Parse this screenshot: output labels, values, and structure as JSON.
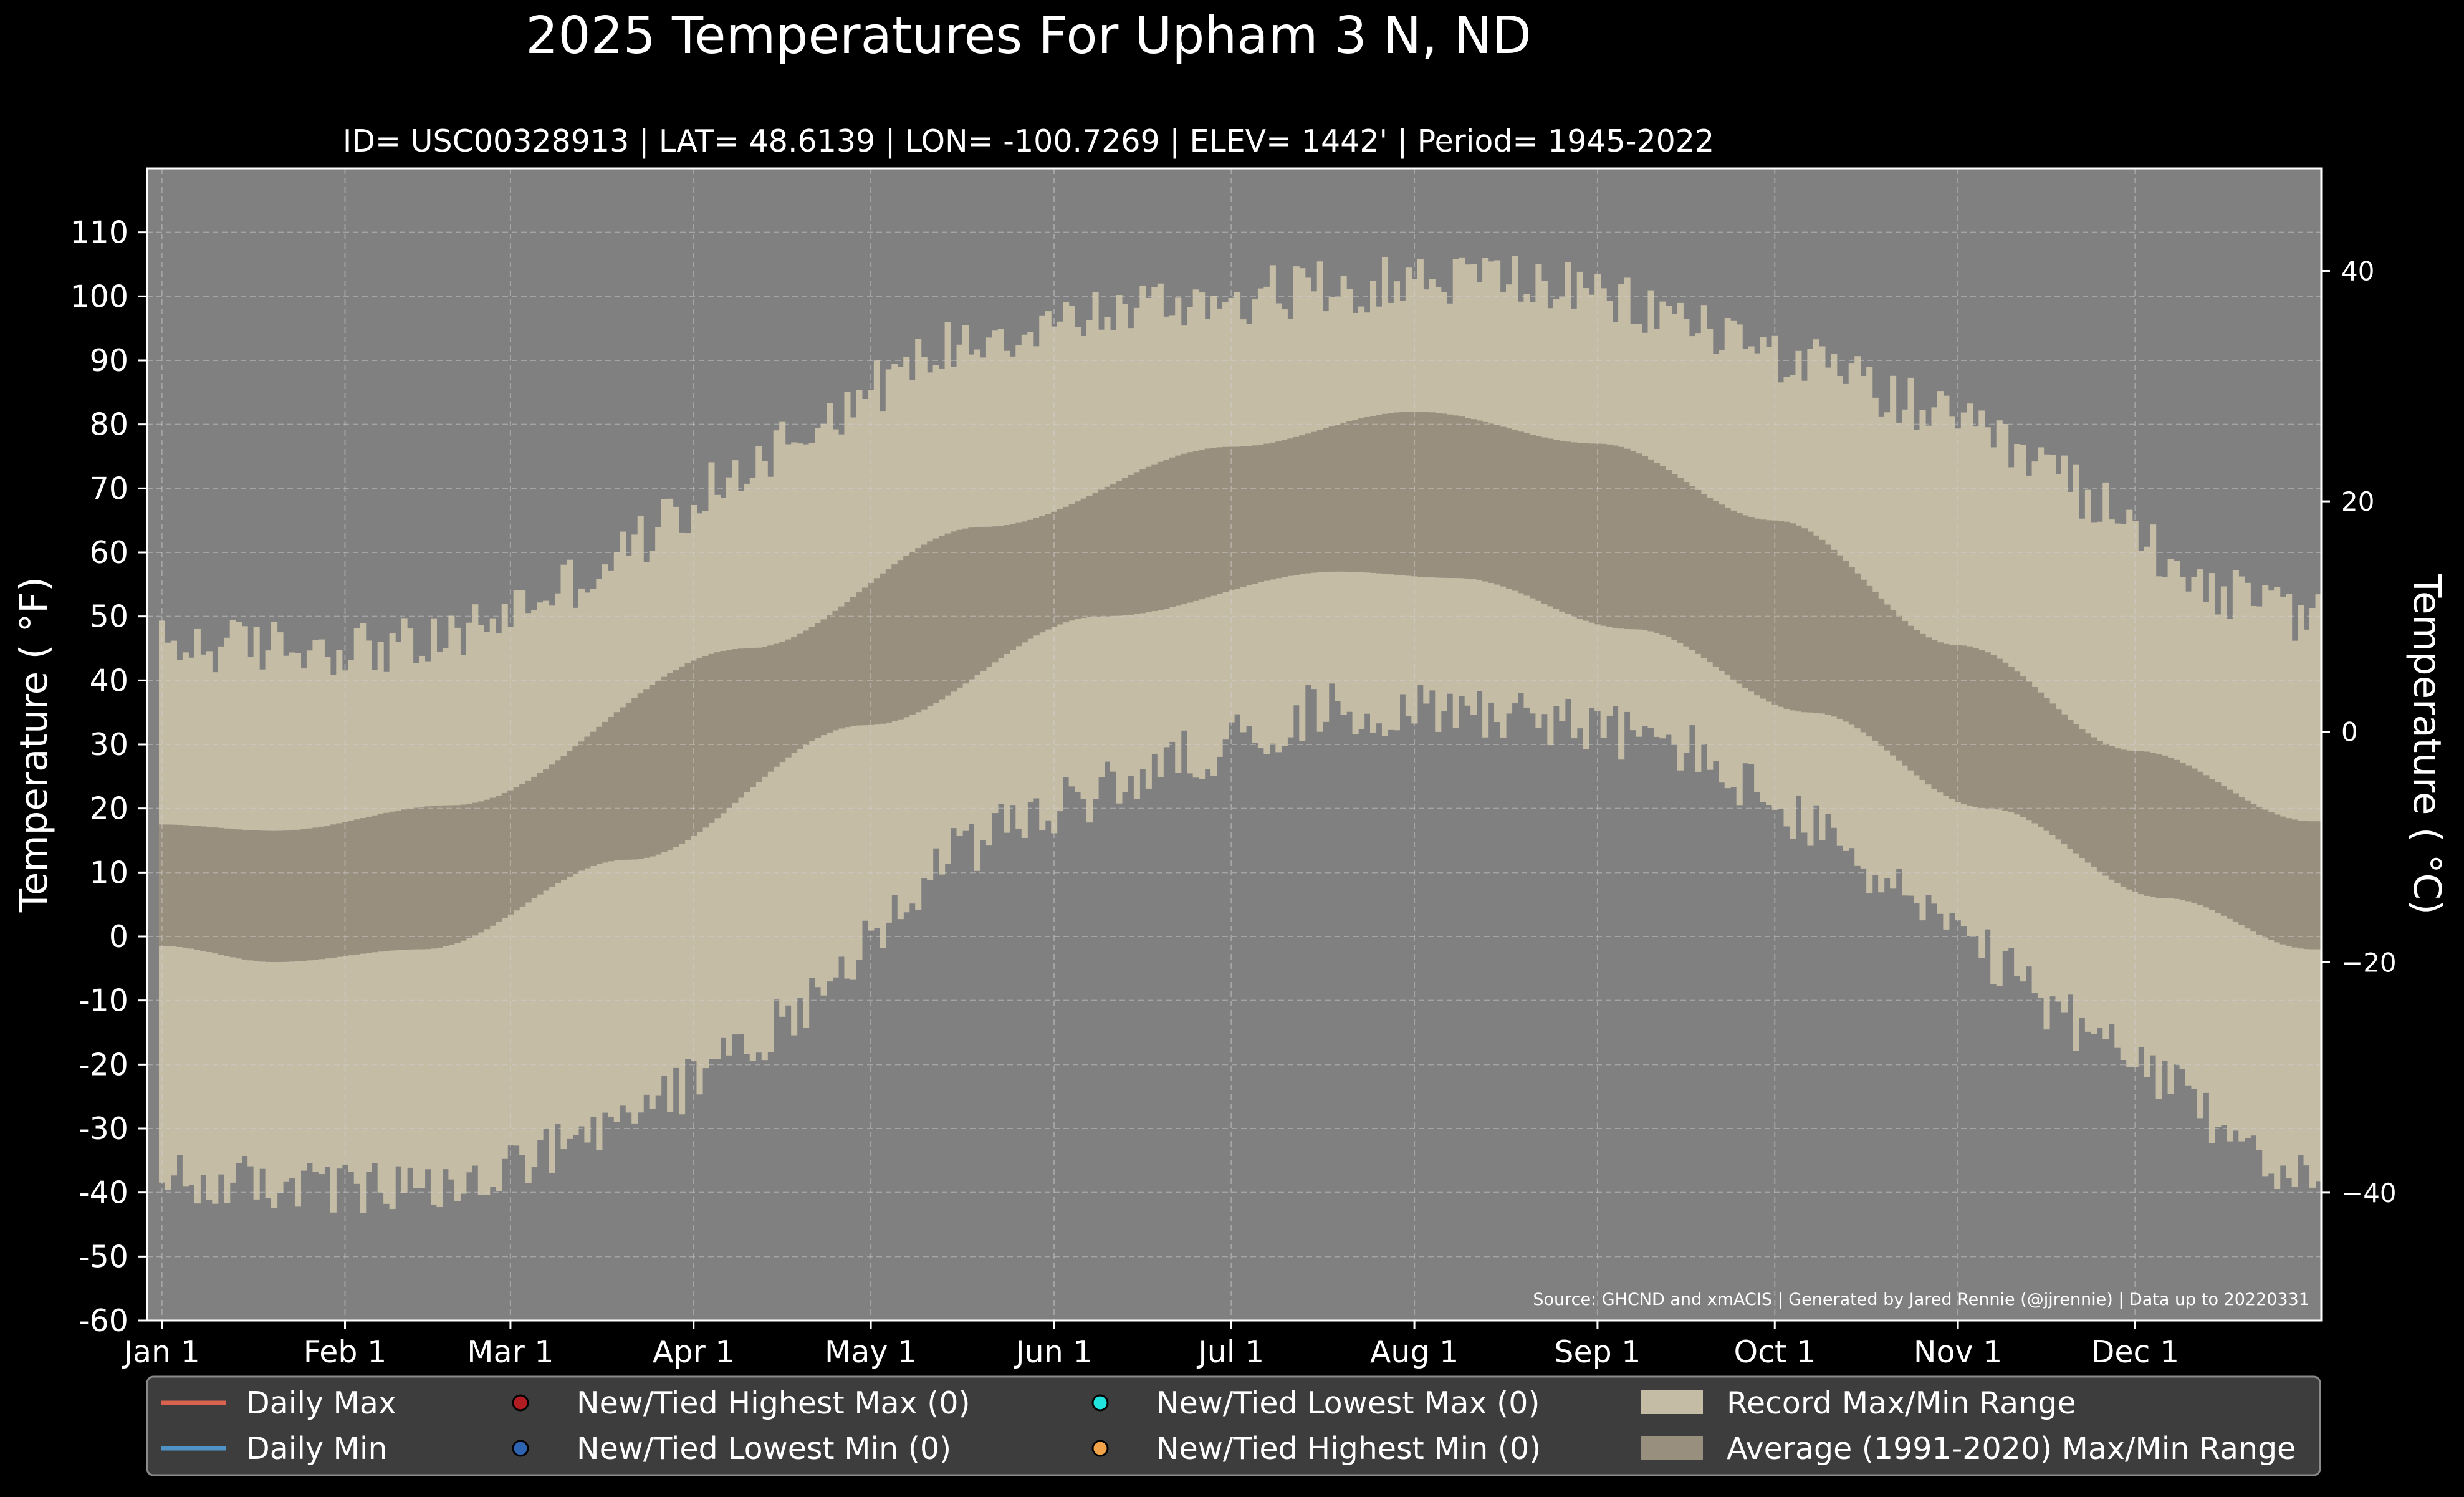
{
  "chart_data": {
    "type": "area",
    "title": "2025 Temperatures For Upham 3 N, ND",
    "subtitle": "ID= USC00328913 | LAT= 48.6139 | LON= -100.7269 | ELEV= 1442' | Period= 1945-2022",
    "ylabel_left": "Temperature ( °F)",
    "ylabel_right": "Temperature ( °C)",
    "source_note": "Source: GHCND and xmACIS | Generated by Jared Rennie (@jjrennie) | Data up to 20220331",
    "ylim_f": [
      -60,
      120
    ],
    "ylim_c": [
      -51.1,
      48.9
    ],
    "y_ticks_f": [
      -60,
      -50,
      -40,
      -30,
      -20,
      -10,
      0,
      10,
      20,
      30,
      40,
      50,
      60,
      70,
      80,
      90,
      100,
      110
    ],
    "y_tick_labels_f": [
      "-60",
      "-50",
      "-40",
      "-30",
      "-20",
      "-10",
      "0",
      "10",
      "20",
      "30",
      "40",
      "50",
      "60",
      "70",
      "80",
      "90",
      "100",
      "110"
    ],
    "y_ticks_c": [
      -40,
      -20,
      0,
      20,
      40
    ],
    "y_tick_labels_c": [
      "−40",
      "−20",
      "0",
      "20",
      "40"
    ],
    "x_range_days": [
      -1.5,
      366.5
    ],
    "month_starts": [
      1,
      32,
      60,
      91,
      121,
      152,
      182,
      213,
      244,
      274,
      305,
      335
    ],
    "x_tick_labels": [
      "Jan 1",
      "Feb 1",
      "Mar 1",
      "Apr 1",
      "May 1",
      "Jun 1",
      "Jul 1",
      "Aug 1",
      "Sep 1",
      "Oct 1",
      "Nov 1",
      "Dec 1"
    ],
    "grid": true,
    "series": [
      {
        "name": "Record Max/Min Range",
        "color": "#c5bca5",
        "record_max_monthly": [
          44,
          44,
          56,
          76,
          92,
          97,
          100,
          102,
          95,
          85,
          72,
          52
        ],
        "record_max_endpoint_dec31": 48,
        "record_min_monthly": [
          -38,
          -40,
          -31,
          -13,
          14,
          26,
          36,
          36,
          30,
          12,
          -10,
          -29
        ],
        "record_min_endpoint_dec31": -40
      },
      {
        "name": "Average (1991-2020) Max/Min Range",
        "color": "#998f7e",
        "normal_max_anchors": [
          [
            1,
            17.5
          ],
          [
            20,
            16.5
          ],
          [
            50,
            20.5
          ],
          [
            100,
            45
          ],
          [
            140,
            64
          ],
          [
            182,
            76.5
          ],
          [
            213,
            82
          ],
          [
            244,
            77
          ],
          [
            274,
            65
          ],
          [
            305,
            45.5
          ],
          [
            335,
            29
          ],
          [
            365,
            18
          ]
        ],
        "normal_min_anchors": [
          [
            1,
            -1.5
          ],
          [
            20,
            -4
          ],
          [
            45,
            -2
          ],
          [
            80,
            12
          ],
          [
            120,
            33
          ],
          [
            160,
            50
          ],
          [
            200,
            57
          ],
          [
            220,
            56
          ],
          [
            250,
            48
          ],
          [
            280,
            35
          ],
          [
            310,
            20
          ],
          [
            340,
            6
          ],
          [
            365,
            -2
          ]
        ]
      }
    ],
    "legend_placement": "bottom",
    "legend": [
      {
        "label": "Daily Max",
        "type": "line",
        "color": "#d9634f"
      },
      {
        "label": "Daily Min",
        "type": "line",
        "color": "#4f93c7"
      },
      {
        "label": "New/Tied Highest Max (0)",
        "type": "marker",
        "color": "#b01c22"
      },
      {
        "label": "New/Tied Lowest Min (0)",
        "type": "marker",
        "color": "#2d63b0"
      },
      {
        "label": "New/Tied Lowest Max (0)",
        "type": "marker",
        "color": "#22e4df"
      },
      {
        "label": "New/Tied Highest Min (0)",
        "type": "marker",
        "color": "#f2a34a"
      },
      {
        "label": "Record Max/Min Range",
        "type": "patch",
        "color": "#c5bca5"
      },
      {
        "label": "Average (1991-2020) Max/Min Range",
        "type": "patch",
        "color": "#998f7e"
      }
    ],
    "colors": {
      "page_background": "#000000",
      "plot_background": "#808080",
      "legend_background": "#3d3d3d"
    }
  }
}
